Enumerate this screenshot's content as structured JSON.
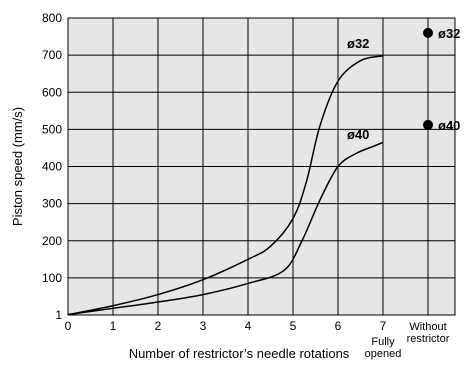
{
  "chart_data": {
    "type": "line",
    "title": "",
    "xlabel": "Number of restrictor’s needle rotations",
    "ylabel": "Piston speed (mm/s)",
    "xlim": [
      0,
      8.6
    ],
    "ylim": [
      0,
      800
    ],
    "x_ticks": [
      "0",
      "1",
      "2",
      "3",
      "4",
      "5",
      "6",
      "7"
    ],
    "x_extra_labels": {
      "fully_opened": [
        "Fully",
        "opened"
      ],
      "without_restrictor": [
        "Without",
        "restrictor"
      ]
    },
    "y_ticks": [
      "1",
      "100",
      "200",
      "300",
      "400",
      "500",
      "600",
      "700",
      "800"
    ],
    "grid": true,
    "series": [
      {
        "name": "ø32",
        "x": [
          0,
          1,
          2,
          3,
          4,
          4.5,
          5,
          5.3,
          5.6,
          6,
          6.5,
          7
        ],
        "y": [
          1,
          25,
          55,
          95,
          150,
          185,
          260,
          360,
          510,
          630,
          685,
          698
        ]
      },
      {
        "name": "ø40",
        "x": [
          0,
          1,
          2,
          3,
          4,
          4.8,
          5.2,
          5.6,
          6,
          6.4,
          6.8,
          7
        ],
        "y": [
          1,
          18,
          35,
          55,
          85,
          120,
          200,
          310,
          400,
          435,
          455,
          465
        ]
      }
    ],
    "without_restrictor_points": [
      {
        "name": "ø32",
        "y": 760
      },
      {
        "name": "ø40",
        "y": 512
      }
    ]
  }
}
